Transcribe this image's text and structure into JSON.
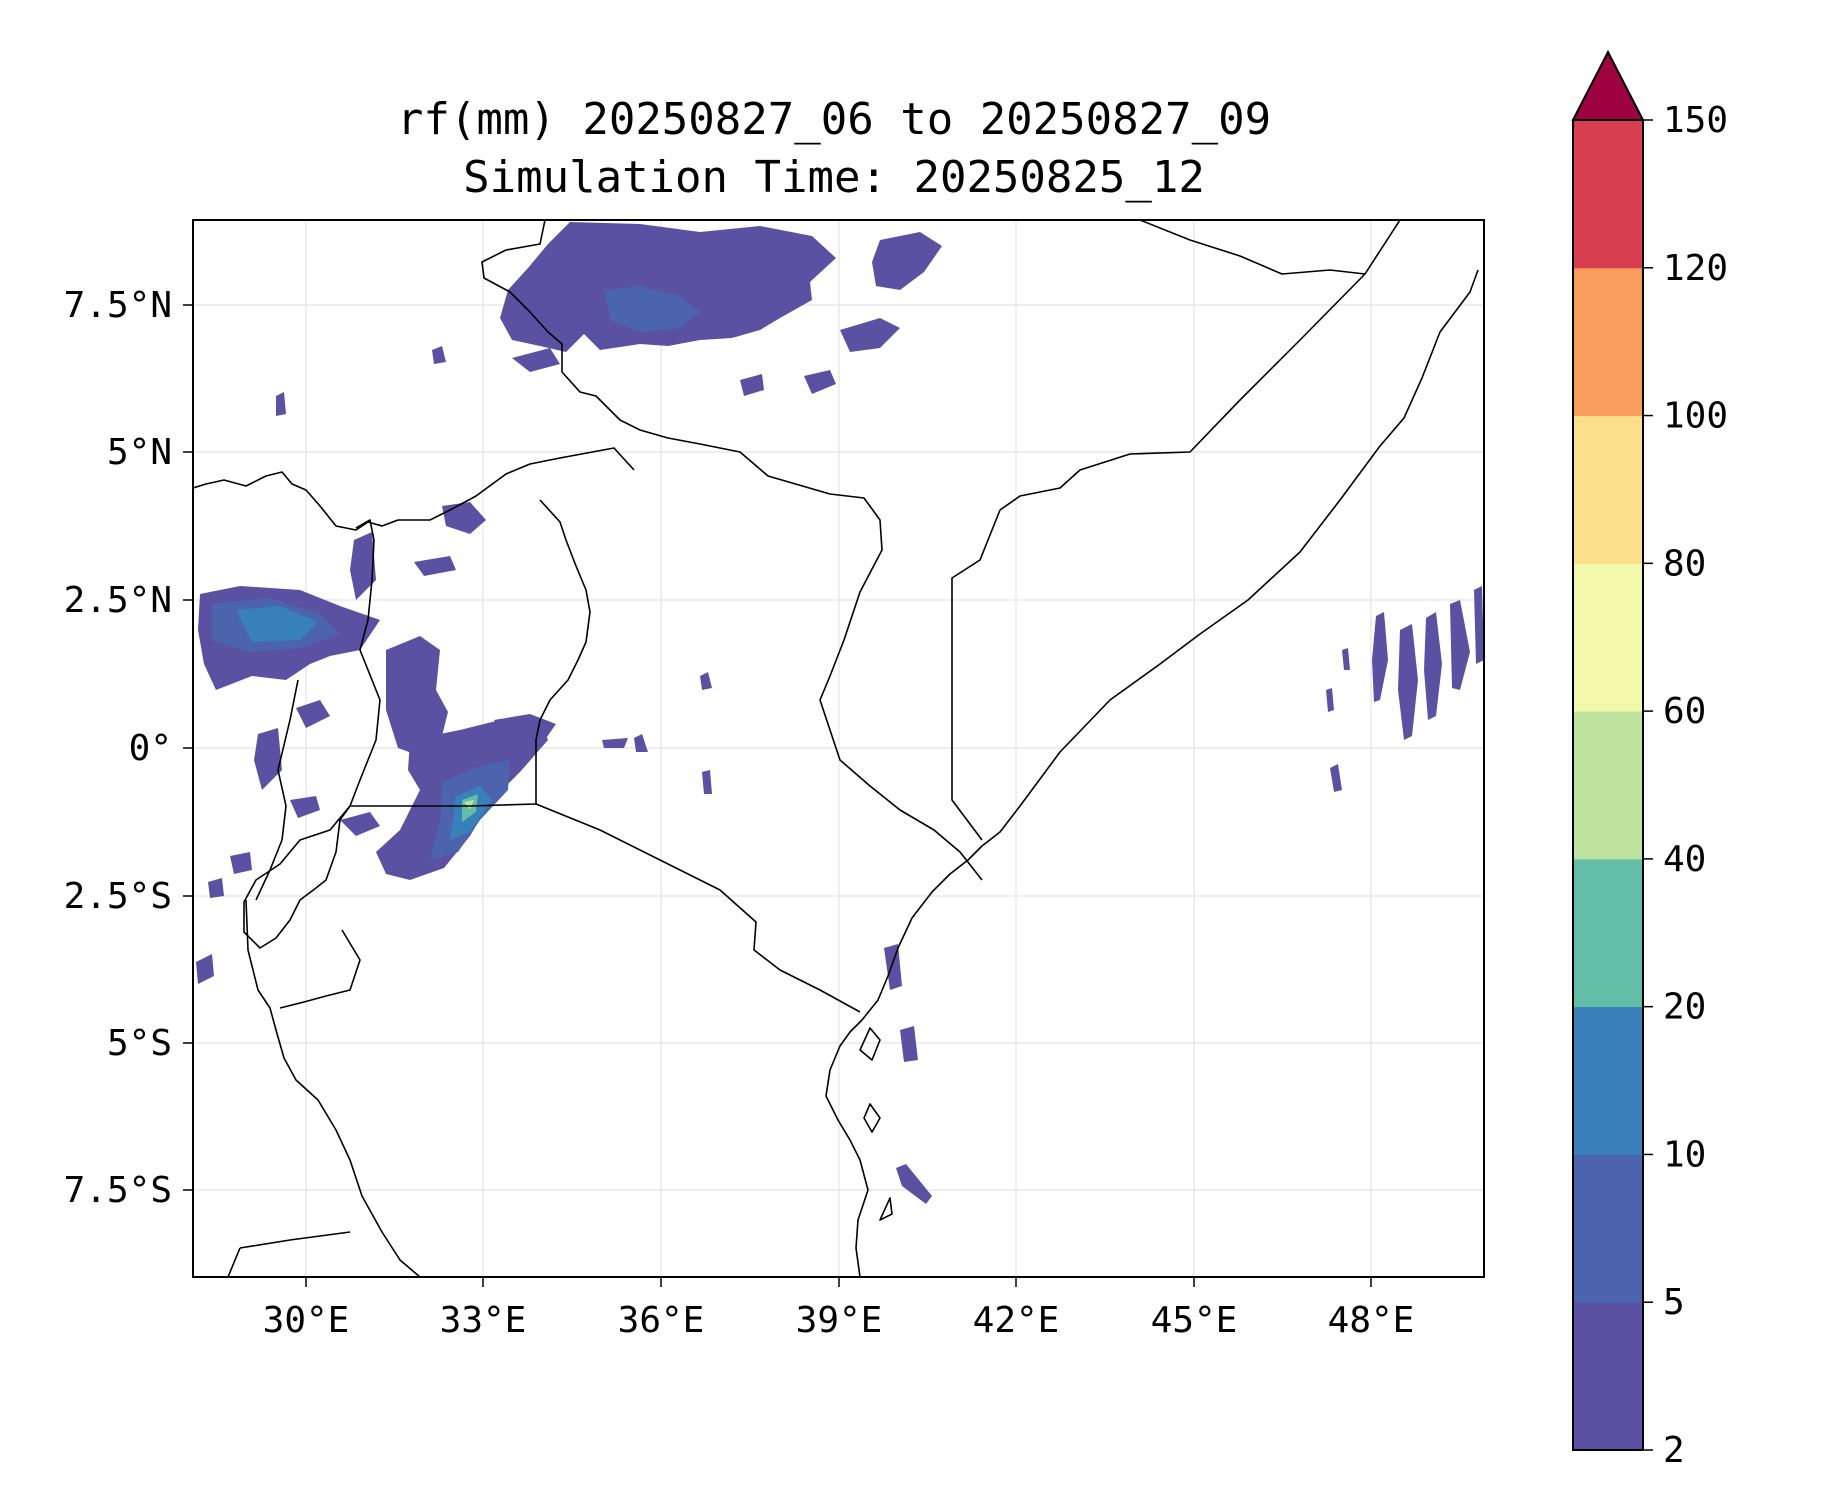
{
  "title": {
    "line1": "rf(mm) 20250827_06 to 20250827_09",
    "line2": "Simulation Time: 20250825_12"
  },
  "map": {
    "lon_ticks": [
      "30°E",
      "33°E",
      "36°E",
      "39°E",
      "42°E",
      "45°E",
      "48°E"
    ],
    "lat_ticks": [
      "7.5°N",
      "5°N",
      "2.5°N",
      "0°",
      "2.5°S",
      "5°S",
      "7.5°S"
    ],
    "lon_range": [
      28.1,
      49.9
    ],
    "lat_range": [
      -8.95,
      8.95
    ],
    "grid": true
  },
  "colorbar": {
    "levels": [
      "2",
      "5",
      "10",
      "20",
      "40",
      "60",
      "80",
      "100",
      "120",
      "150"
    ],
    "colors": [
      "#5b51a3",
      "#4b64ad",
      "#3880ba",
      "#63bea8",
      "#bde39f",
      "#f2f9ab",
      "#fbdf8a",
      "#f99e5c",
      "#d73f50",
      "#9e0142"
    ],
    "extend": "max"
  }
}
